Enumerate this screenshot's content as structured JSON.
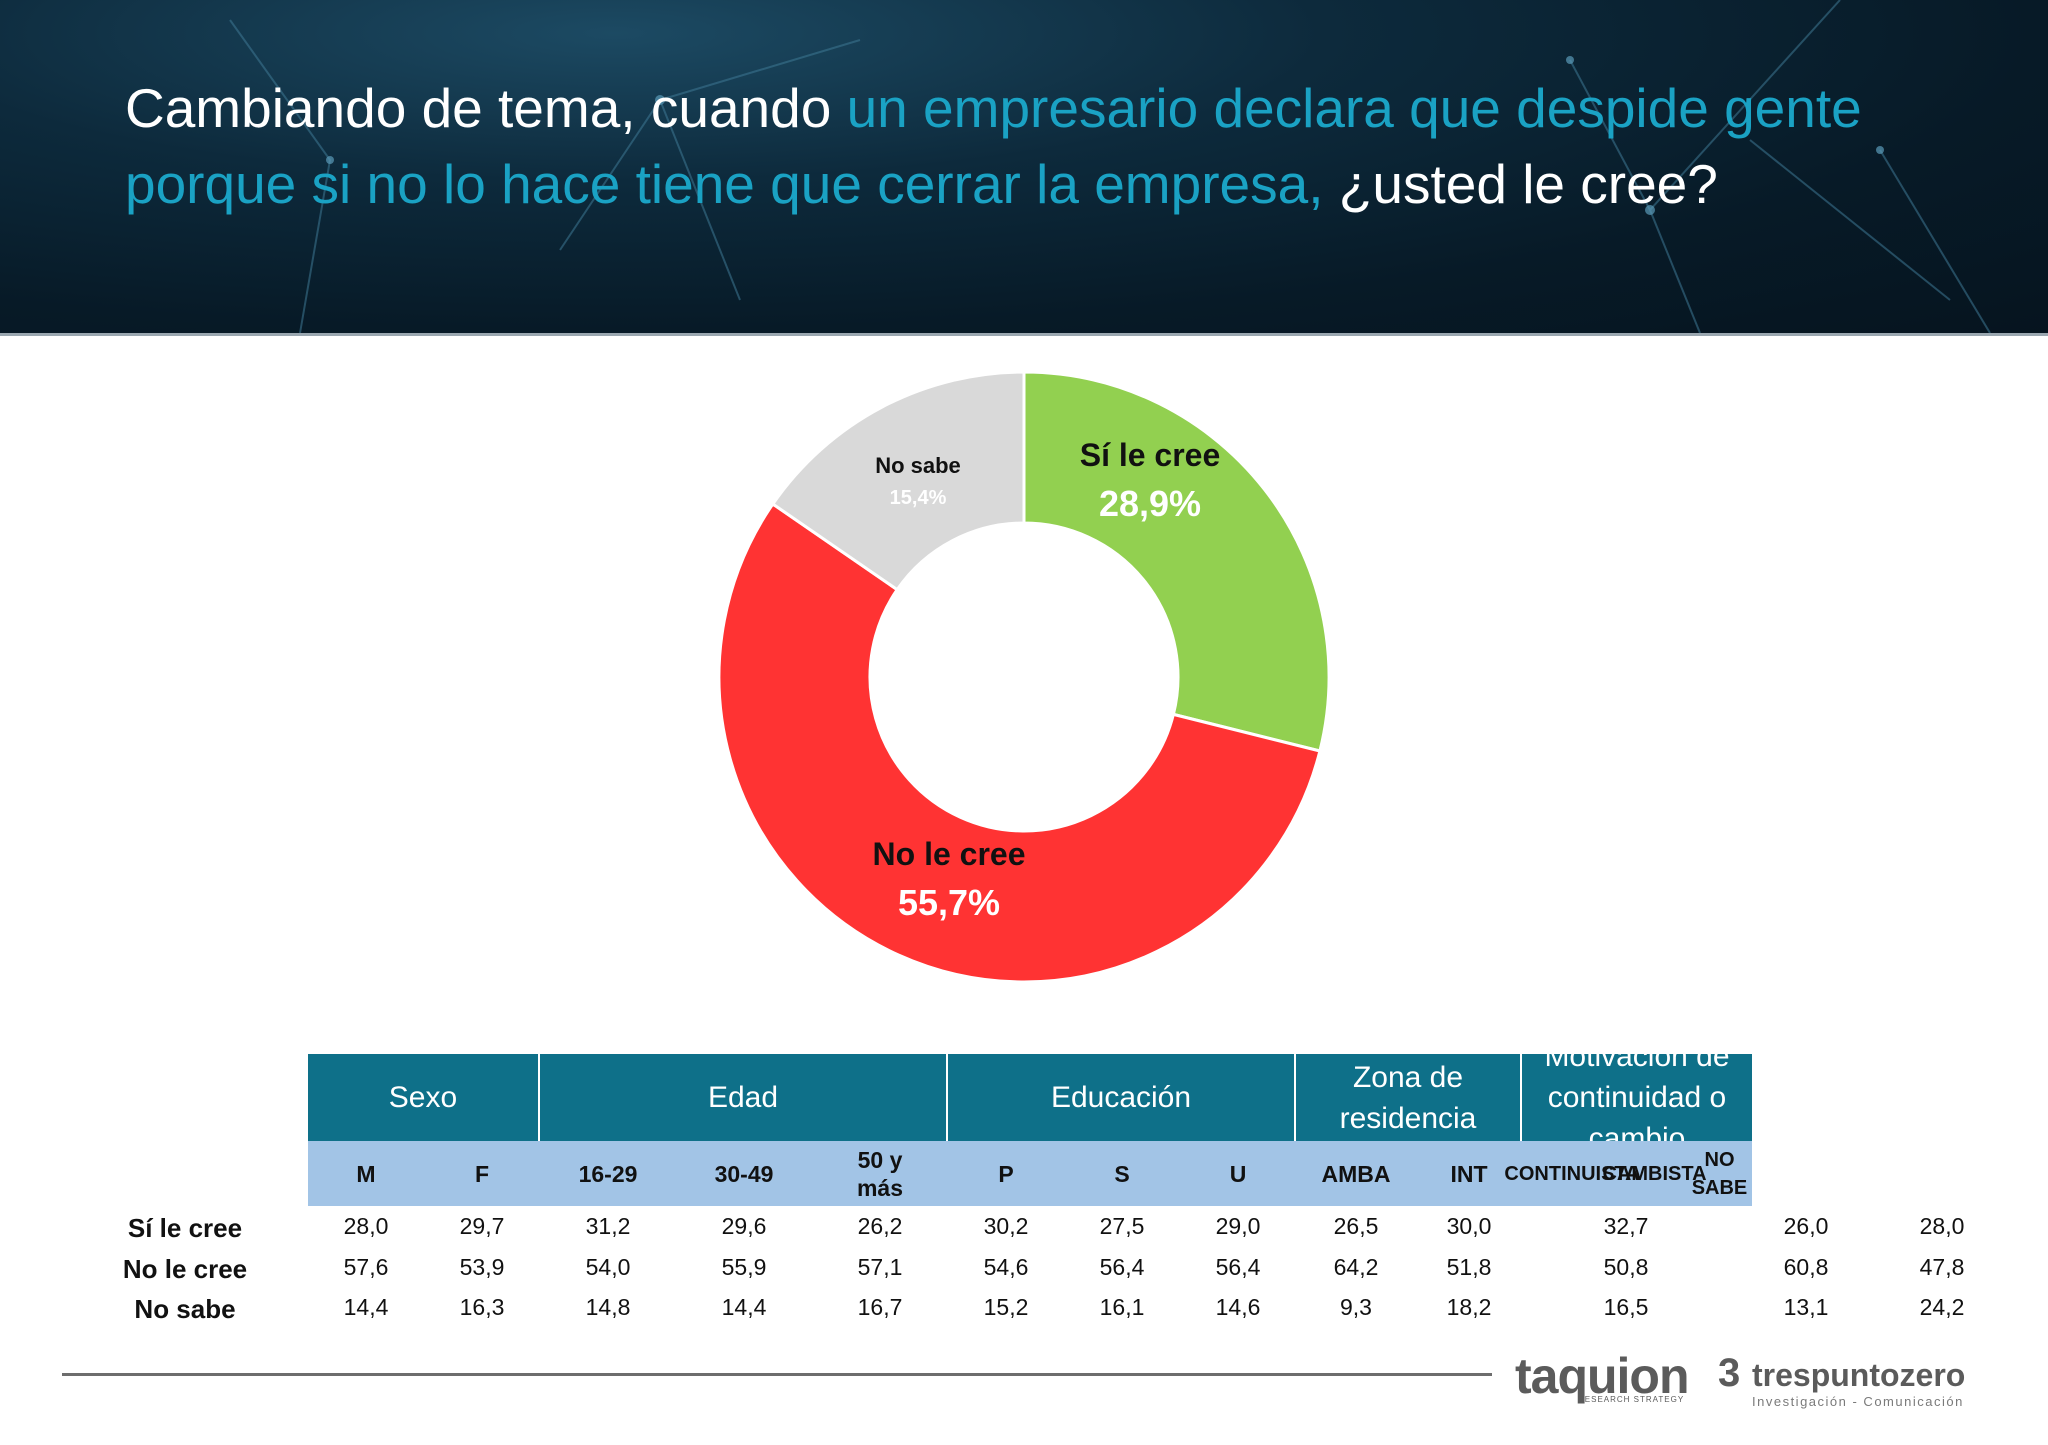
{
  "header": {
    "title_part1": "Cambiando de tema, cuando ",
    "title_highlight": "un empresario declara que despide gente porque si no lo hace tiene que cerrar la empresa,",
    "title_part2": " ¿usted le cree?",
    "highlight_color": "#1aa2c4"
  },
  "chart_data": {
    "type": "pie",
    "donut": true,
    "slices": [
      {
        "label": "Sí le cree",
        "value": 28.9,
        "display": "28,9%",
        "color": "#92d050"
      },
      {
        "label": "No le cree",
        "value": 55.7,
        "display": "55,7%",
        "color": "#ff3333"
      },
      {
        "label": "No sabe",
        "value": 15.4,
        "display": "15,4%",
        "color": "#d9d9d9"
      }
    ]
  },
  "table": {
    "groups": [
      {
        "label": "Sexo"
      },
      {
        "label": "Edad"
      },
      {
        "label": "Educación"
      },
      {
        "label": "Zona de residencia"
      },
      {
        "label": "Motivación de continuidad o cambio"
      }
    ],
    "columns": [
      "M",
      "F",
      "16-29",
      "30-49",
      "50 y más",
      "P",
      "S",
      "U",
      "AMBA",
      "INT",
      "CONTINUISTA",
      "CAMBISTA",
      "NO SABE"
    ],
    "rows": [
      {
        "label": "Sí le cree",
        "values": [
          "28,0",
          "29,7",
          "31,2",
          "29,6",
          "26,2",
          "30,2",
          "27,5",
          "29,0",
          "26,5",
          "30,0",
          "32,7",
          "26,0",
          "28,0"
        ]
      },
      {
        "label": "No le cree",
        "values": [
          "57,6",
          "53,9",
          "54,0",
          "55,9",
          "57,1",
          "54,6",
          "56,4",
          "56,4",
          "64,2",
          "51,8",
          "50,8",
          "60,8",
          "47,8"
        ]
      },
      {
        "label": "No sabe",
        "values": [
          "14,4",
          "16,3",
          "14,8",
          "14,4",
          "16,7",
          "15,2",
          "16,1",
          "14,6",
          "9,3",
          "18,2",
          "16,5",
          "13,1",
          "24,2"
        ]
      }
    ],
    "header_color": "#0e7089",
    "subheader_color": "#a2c4e6"
  },
  "footer": {
    "logo1": "taquion",
    "logo1_sub": "RESEARCH STRATEGY",
    "logo2_mark": "3",
    "logo2": "trespuntozero",
    "logo2_sub": "Investigación - Comunicación"
  }
}
